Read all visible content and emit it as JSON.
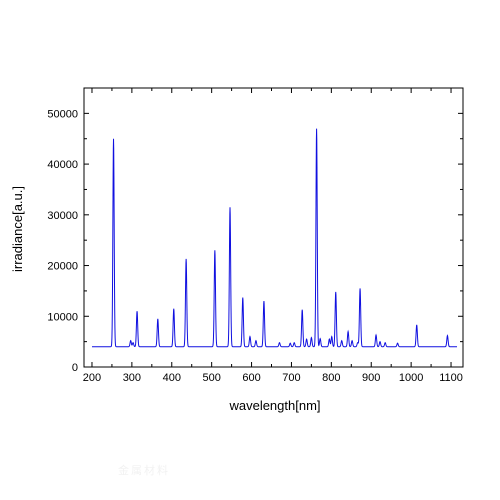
{
  "chart_data": {
    "type": "line",
    "title": "",
    "xlabel": "wavelength[nm]",
    "ylabel": "irradiance[a.u.]",
    "xlim": [
      180,
      1130
    ],
    "ylim": [
      0,
      55000
    ],
    "xticks": [
      200,
      300,
      400,
      500,
      600,
      700,
      800,
      900,
      1000,
      1100
    ],
    "yticks": [
      0,
      10000,
      20000,
      30000,
      40000,
      50000
    ],
    "x_start": 200,
    "x_end": 1115,
    "baseline": 4000,
    "line_color": "#1010e0",
    "grid": false,
    "legend": "none",
    "peaks": [
      {
        "x": 254,
        "y": 45000
      },
      {
        "x": 297,
        "y": 5200
      },
      {
        "x": 303,
        "y": 4800
      },
      {
        "x": 313,
        "y": 11000
      },
      {
        "x": 365,
        "y": 9500
      },
      {
        "x": 405,
        "y": 11500
      },
      {
        "x": 436,
        "y": 21300
      },
      {
        "x": 508,
        "y": 23000
      },
      {
        "x": 546,
        "y": 31500
      },
      {
        "x": 578,
        "y": 13700
      },
      {
        "x": 596,
        "y": 6000
      },
      {
        "x": 611,
        "y": 5200
      },
      {
        "x": 631,
        "y": 13000
      },
      {
        "x": 670,
        "y": 4800
      },
      {
        "x": 697,
        "y": 4700
      },
      {
        "x": 707,
        "y": 4800
      },
      {
        "x": 727,
        "y": 11300
      },
      {
        "x": 738,
        "y": 5500
      },
      {
        "x": 750,
        "y": 5800
      },
      {
        "x": 763,
        "y": 47000
      },
      {
        "x": 772,
        "y": 5600
      },
      {
        "x": 795,
        "y": 5500
      },
      {
        "x": 801,
        "y": 6000
      },
      {
        "x": 811,
        "y": 14800
      },
      {
        "x": 826,
        "y": 5200
      },
      {
        "x": 842,
        "y": 7000
      },
      {
        "x": 852,
        "y": 5200
      },
      {
        "x": 866,
        "y": 4800
      },
      {
        "x": 872,
        "y": 15500
      },
      {
        "x": 912,
        "y": 6300
      },
      {
        "x": 922,
        "y": 5000
      },
      {
        "x": 935,
        "y": 4800
      },
      {
        "x": 966,
        "y": 4700
      },
      {
        "x": 1014,
        "y": 8300
      },
      {
        "x": 1091,
        "y": 6200
      }
    ]
  },
  "watermark": "金属材料"
}
